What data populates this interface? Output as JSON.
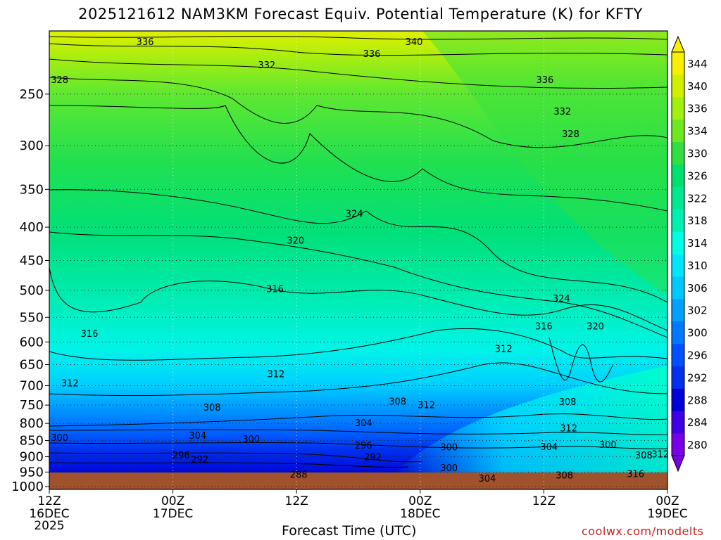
{
  "title": "2025121612 NAM3KM Forecast Equiv. Potential Temperature (K) for KFTY",
  "xaxis_title": "Forecast Time (UTC)",
  "credit": "coolwx.com/modelts",
  "colors": {
    "ground": "#a0522d",
    "credit": "#c81e1e"
  },
  "chart_data": {
    "type": "heatmap",
    "title": "2025121612 NAM3KM Forecast Equiv. Potential Temperature (K) for KFTY",
    "xlabel": "Forecast Time (UTC)",
    "ylabel": "",
    "y_scale": "log-pressure",
    "ylim": [
      1010,
      200
    ],
    "y_ticks": [
      250,
      300,
      350,
      400,
      450,
      500,
      550,
      600,
      650,
      700,
      750,
      800,
      850,
      900,
      950,
      1000
    ],
    "x_ticks": [
      {
        "hours": 0,
        "label1": "12Z",
        "label2": "16DEC",
        "label3": "2025"
      },
      {
        "hours": 12,
        "label1": "00Z",
        "label2": "17DEC",
        "label3": ""
      },
      {
        "hours": 24,
        "label1": "12Z",
        "label2": "",
        "label3": ""
      },
      {
        "hours": 36,
        "label1": "00Z",
        "label2": "18DEC",
        "label3": ""
      },
      {
        "hours": 48,
        "label1": "12Z",
        "label2": "",
        "label3": ""
      },
      {
        "hours": 60,
        "label1": "00Z",
        "label2": "19DEC",
        "label3": ""
      }
    ],
    "xlim": [
      0,
      60
    ],
    "grid": true,
    "colorbar": {
      "placement": "right",
      "levels": [
        280,
        284,
        288,
        292,
        296,
        300,
        302,
        306,
        310,
        314,
        318,
        322,
        326,
        330,
        334,
        336,
        340,
        344
      ],
      "colors": [
        "#7a00e6",
        "#4000e6",
        "#0000d8",
        "#0030ee",
        "#0050ff",
        "#0078ff",
        "#00a0ff",
        "#00c8ff",
        "#00e6ff",
        "#00ffe0",
        "#00f0b0",
        "#00e890",
        "#00e070",
        "#30e040",
        "#70e820",
        "#a0f010",
        "#d0f000",
        "#f8f000"
      ]
    },
    "profile": [
      {
        "hours": 0,
        "levels": [
          {
            "p": 990,
            "theta": 290
          },
          {
            "p": 960,
            "theta": 292
          },
          {
            "p": 900,
            "theta": 296
          },
          {
            "p": 850,
            "theta": 300
          },
          {
            "p": 800,
            "theta": 304
          },
          {
            "p": 750,
            "theta": 308
          },
          {
            "p": 700,
            "theta": 312
          },
          {
            "p": 600,
            "theta": 316
          },
          {
            "p": 500,
            "theta": 318
          },
          {
            "p": 400,
            "theta": 322
          },
          {
            "p": 320,
            "theta": 326
          },
          {
            "p": 260,
            "theta": 330
          },
          {
            "p": 220,
            "theta": 334
          },
          {
            "p": 205,
            "theta": 336
          }
        ]
      },
      {
        "hours": 12,
        "levels": [
          {
            "p": 990,
            "theta": 288
          },
          {
            "p": 960,
            "theta": 290
          },
          {
            "p": 900,
            "theta": 294
          },
          {
            "p": 850,
            "theta": 300
          },
          {
            "p": 800,
            "theta": 304
          },
          {
            "p": 750,
            "theta": 308
          },
          {
            "p": 700,
            "theta": 310
          },
          {
            "p": 600,
            "theta": 314
          },
          {
            "p": 500,
            "theta": 316
          },
          {
            "p": 400,
            "theta": 320
          },
          {
            "p": 320,
            "theta": 324
          },
          {
            "p": 260,
            "theta": 330
          },
          {
            "p": 220,
            "theta": 332
          },
          {
            "p": 205,
            "theta": 336
          }
        ]
      },
      {
        "hours": 24,
        "levels": [
          {
            "p": 990,
            "theta": 288
          },
          {
            "p": 960,
            "theta": 290
          },
          {
            "p": 900,
            "theta": 292
          },
          {
            "p": 850,
            "theta": 298
          },
          {
            "p": 800,
            "theta": 304
          },
          {
            "p": 750,
            "theta": 308
          },
          {
            "p": 700,
            "theta": 310
          },
          {
            "p": 600,
            "theta": 314
          },
          {
            "p": 500,
            "theta": 318
          },
          {
            "p": 400,
            "theta": 322
          },
          {
            "p": 320,
            "theta": 326
          },
          {
            "p": 260,
            "theta": 330
          },
          {
            "p": 220,
            "theta": 334
          },
          {
            "p": 205,
            "theta": 338
          }
        ]
      },
      {
        "hours": 36,
        "levels": [
          {
            "p": 990,
            "theta": 292
          },
          {
            "p": 960,
            "theta": 296
          },
          {
            "p": 900,
            "theta": 300
          },
          {
            "p": 850,
            "theta": 302
          },
          {
            "p": 800,
            "theta": 306
          },
          {
            "p": 750,
            "theta": 310
          },
          {
            "p": 700,
            "theta": 312
          },
          {
            "p": 600,
            "theta": 314
          },
          {
            "p": 500,
            "theta": 318
          },
          {
            "p": 400,
            "theta": 322
          },
          {
            "p": 320,
            "theta": 326
          },
          {
            "p": 260,
            "theta": 330
          },
          {
            "p": 220,
            "theta": 336
          },
          {
            "p": 205,
            "theta": 340
          }
        ]
      },
      {
        "hours": 48,
        "levels": [
          {
            "p": 990,
            "theta": 304
          },
          {
            "p": 960,
            "theta": 308
          },
          {
            "p": 900,
            "theta": 306
          },
          {
            "p": 850,
            "theta": 304
          },
          {
            "p": 800,
            "theta": 308
          },
          {
            "p": 750,
            "theta": 310
          },
          {
            "p": 700,
            "theta": 312
          },
          {
            "p": 600,
            "theta": 316
          },
          {
            "p": 500,
            "theta": 320
          },
          {
            "p": 400,
            "theta": 324
          },
          {
            "p": 320,
            "theta": 328
          },
          {
            "p": 260,
            "theta": 332
          },
          {
            "p": 220,
            "theta": 336
          },
          {
            "p": 205,
            "theta": 340
          }
        ]
      },
      {
        "hours": 60,
        "levels": [
          {
            "p": 990,
            "theta": 316
          },
          {
            "p": 960,
            "theta": 314
          },
          {
            "p": 900,
            "theta": 312
          },
          {
            "p": 850,
            "theta": 314
          },
          {
            "p": 800,
            "theta": 316
          },
          {
            "p": 750,
            "theta": 318
          },
          {
            "p": 700,
            "theta": 320
          },
          {
            "p": 600,
            "theta": 322
          },
          {
            "p": 500,
            "theta": 324
          },
          {
            "p": 400,
            "theta": 326
          },
          {
            "p": 320,
            "theta": 328
          },
          {
            "p": 260,
            "theta": 332
          },
          {
            "p": 220,
            "theta": 336
          },
          {
            "p": 205,
            "theta": 340
          }
        ]
      }
    ],
    "contour_labels": [
      {
        "text": "336",
        "hours": 9.3,
        "p": 208
      },
      {
        "text": "340",
        "hours": 35.4,
        "p": 208
      },
      {
        "text": "336",
        "hours": 31.3,
        "p": 217
      },
      {
        "text": "332",
        "hours": 21.1,
        "p": 226
      },
      {
        "text": "328",
        "hours": 1.0,
        "p": 238
      },
      {
        "text": "336",
        "hours": 48.1,
        "p": 238
      },
      {
        "text": "332",
        "hours": 49.8,
        "p": 266
      },
      {
        "text": "328",
        "hours": 50.6,
        "p": 288
      },
      {
        "text": "324",
        "hours": 29.6,
        "p": 382
      },
      {
        "text": "320",
        "hours": 23.9,
        "p": 420
      },
      {
        "text": "316",
        "hours": 21.9,
        "p": 498
      },
      {
        "text": "324",
        "hours": 49.7,
        "p": 515
      },
      {
        "text": "316",
        "hours": 3.9,
        "p": 583
      },
      {
        "text": "316",
        "hours": 48.0,
        "p": 568
      },
      {
        "text": "320",
        "hours": 53.0,
        "p": 568
      },
      {
        "text": "312",
        "hours": 44.1,
        "p": 615
      },
      {
        "text": "312",
        "hours": 22.0,
        "p": 673
      },
      {
        "text": "312",
        "hours": 2.0,
        "p": 695
      },
      {
        "text": "308",
        "hours": 33.8,
        "p": 741
      },
      {
        "text": "312",
        "hours": 36.6,
        "p": 751
      },
      {
        "text": "308",
        "hours": 15.8,
        "p": 757
      },
      {
        "text": "308",
        "hours": 50.3,
        "p": 742
      },
      {
        "text": "304",
        "hours": 30.5,
        "p": 800
      },
      {
        "text": "312",
        "hours": 50.4,
        "p": 815
      },
      {
        "text": "304",
        "hours": 14.4,
        "p": 836
      },
      {
        "text": "300",
        "hours": 1.0,
        "p": 842
      },
      {
        "text": "300",
        "hours": 19.6,
        "p": 847
      },
      {
        "text": "296",
        "hours": 30.5,
        "p": 866
      },
      {
        "text": "304",
        "hours": 48.5,
        "p": 870
      },
      {
        "text": "300",
        "hours": 54.2,
        "p": 864
      },
      {
        "text": "300",
        "hours": 38.8,
        "p": 871
      },
      {
        "text": "296",
        "hours": 12.8,
        "p": 896
      },
      {
        "text": "292",
        "hours": 31.4,
        "p": 902
      },
      {
        "text": "292",
        "hours": 14.6,
        "p": 910
      },
      {
        "text": "308",
        "hours": 57.7,
        "p": 897
      },
      {
        "text": "312",
        "hours": 59.3,
        "p": 893
      },
      {
        "text": "300",
        "hours": 38.8,
        "p": 938
      },
      {
        "text": "288",
        "hours": 24.2,
        "p": 960
      },
      {
        "text": "308",
        "hours": 50.0,
        "p": 962
      },
      {
        "text": "316",
        "hours": 56.9,
        "p": 957
      },
      {
        "text": "304",
        "hours": 42.5,
        "p": 973
      }
    ]
  }
}
